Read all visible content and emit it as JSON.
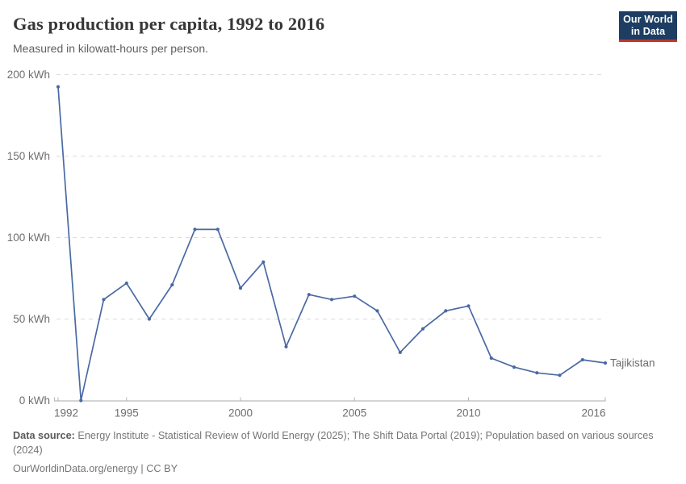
{
  "header": {
    "title": "Gas production per capita, 1992 to 2016",
    "subtitle": "Measured in kilowatt-hours per person."
  },
  "logo": {
    "line1": "Our World",
    "line2": "in Data",
    "bg_color": "#1d3d63",
    "accent_color": "#c0362c"
  },
  "chart_data": {
    "type": "line",
    "title": "Gas production per capita, 1992 to 2016",
    "unit": "kWh",
    "xlabel": "",
    "ylabel": "",
    "xlim": [
      1992,
      2016
    ],
    "ylim": [
      0,
      200
    ],
    "grid": "horizontal-dashed",
    "legend_position": "end-of-line",
    "x": [
      1992,
      1993,
      1994,
      1995,
      1996,
      1997,
      1998,
      1999,
      2000,
      2001,
      2002,
      2003,
      2004,
      2005,
      2006,
      2007,
      2008,
      2009,
      2010,
      2011,
      2012,
      2013,
      2014,
      2015,
      2016
    ],
    "series": [
      {
        "name": "Tajikistan",
        "color": "#4a69a3",
        "values": [
          192.5,
          0,
          62,
          72,
          50,
          71,
          105,
          105,
          69,
          85,
          33,
          65,
          62,
          64,
          55,
          29.5,
          44,
          55,
          58,
          26,
          20.5,
          17,
          15.5,
          25,
          23
        ]
      }
    ],
    "yticks": [
      {
        "value": 0,
        "label": "0 kWh"
      },
      {
        "value": 50,
        "label": "50 kWh"
      },
      {
        "value": 100,
        "label": "100 kWh"
      },
      {
        "value": 150,
        "label": "150 kWh"
      },
      {
        "value": 200,
        "label": "200 kWh"
      }
    ],
    "xticks": [
      {
        "value": 1992,
        "label": "1992"
      },
      {
        "value": 1995,
        "label": "1995"
      },
      {
        "value": 2000,
        "label": "2000"
      },
      {
        "value": 2005,
        "label": "2005"
      },
      {
        "value": 2010,
        "label": "2010"
      },
      {
        "value": 2016,
        "label": "2016"
      }
    ],
    "colors": {
      "gridline": "#dcdcdc",
      "axis": "#a8a8a8",
      "tick": "#b5b5b5",
      "tick_label": "#6e6e6e"
    }
  },
  "footer": {
    "source_label": "Data source:",
    "source_text": "Energy Institute - Statistical Review of World Energy (2025); The Shift Data Portal (2019); Population based on various sources (2024)",
    "license": "OurWorldinData.org/energy | CC BY"
  }
}
